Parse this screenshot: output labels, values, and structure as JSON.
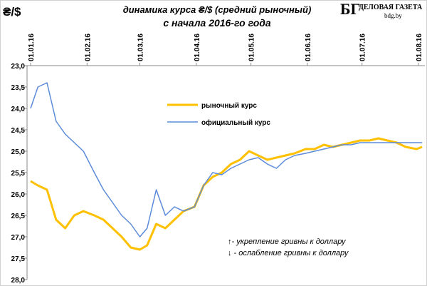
{
  "chart_data": {
    "type": "line",
    "corner_label": "₴/$",
    "title": "динамика курса ₴/$ (средний рыночный)",
    "subtitle": "с начала 2016-го года",
    "logo": {
      "mark": "БГ",
      "name": "ДЕЛОВАЯ ГАЗЕТА",
      "site": "bdg.by"
    },
    "annotations": [
      "↑- укрепление гривны к доллару",
      "↓ - ослабление гривны к доллару"
    ],
    "y_inverted": true,
    "grid": false,
    "ylim": [
      23,
      28
    ],
    "yticks": [
      {
        "value": 23,
        "label": "23,0"
      },
      {
        "value": 23.5,
        "label": "23,5"
      },
      {
        "value": 24,
        "label": "24,0"
      },
      {
        "value": 24.5,
        "label": "24,5"
      },
      {
        "value": 25,
        "label": "25,0"
      },
      {
        "value": 25.5,
        "label": "25,5"
      },
      {
        "value": 26,
        "label": "26,0"
      },
      {
        "value": 26.5,
        "label": "26,5"
      },
      {
        "value": 27,
        "label": "27,0"
      },
      {
        "value": 27.5,
        "label": "27,5"
      },
      {
        "value": 28,
        "label": "28,0"
      }
    ],
    "xlim": [
      "01.01.16",
      "01.08.16"
    ],
    "xticks": [
      "01.01.16",
      "01.02.16",
      "01.03.16",
      "01.04.16",
      "01.05.16",
      "01.06.16",
      "01.07.16",
      "01.08.16"
    ],
    "x": [
      "01.01.16",
      "05.01.16",
      "10.01.16",
      "15.01.16",
      "20.01.16",
      "25.01.16",
      "30.01.16",
      "05.02.16",
      "10.02.16",
      "15.02.16",
      "20.02.16",
      "25.02.16",
      "01.03.16",
      "05.03.16",
      "10.03.16",
      "15.03.16",
      "20.03.16",
      "25.03.16",
      "31.03.16",
      "05.04.16",
      "10.04.16",
      "15.04.16",
      "20.04.16",
      "25.04.16",
      "30.04.16",
      "05.05.16",
      "10.05.16",
      "15.05.16",
      "20.05.16",
      "25.05.16",
      "31.05.16",
      "05.06.16",
      "10.06.16",
      "15.06.16",
      "20.06.16",
      "25.06.16",
      "30.06.16",
      "05.07.16",
      "10.07.16",
      "15.07.16",
      "20.07.16",
      "25.07.16",
      "31.07.16",
      "03.08.16"
    ],
    "series": [
      {
        "name": "рыночный  курс",
        "color": "#ffc000",
        "width": 3,
        "values": [
          25.7,
          25.8,
          25.9,
          26.6,
          26.8,
          26.5,
          26.4,
          26.5,
          26.6,
          26.8,
          27.0,
          27.25,
          27.3,
          27.2,
          26.7,
          26.8,
          26.6,
          26.4,
          26.3,
          25.8,
          25.6,
          25.5,
          25.3,
          25.2,
          25.0,
          25.1,
          25.2,
          25.15,
          25.1,
          25.05,
          24.95,
          24.95,
          24.85,
          24.9,
          24.85,
          24.8,
          24.75,
          24.75,
          24.7,
          24.75,
          24.8,
          24.9,
          24.95,
          24.9
        ]
      },
      {
        "name": "официальный  курс",
        "color": "#5b8bd9",
        "width": 1.5,
        "values": [
          24.0,
          23.5,
          23.4,
          24.3,
          24.6,
          24.8,
          25.0,
          25.5,
          25.9,
          26.2,
          26.5,
          26.7,
          27.0,
          26.8,
          25.9,
          26.5,
          26.3,
          26.4,
          26.3,
          25.8,
          25.5,
          25.55,
          25.4,
          25.3,
          25.2,
          25.15,
          25.3,
          25.4,
          25.2,
          25.1,
          25.05,
          25.0,
          24.95,
          24.9,
          24.85,
          24.85,
          24.8,
          24.8,
          24.8,
          24.8,
          24.8,
          24.8,
          24.8,
          24.8
        ]
      }
    ]
  }
}
